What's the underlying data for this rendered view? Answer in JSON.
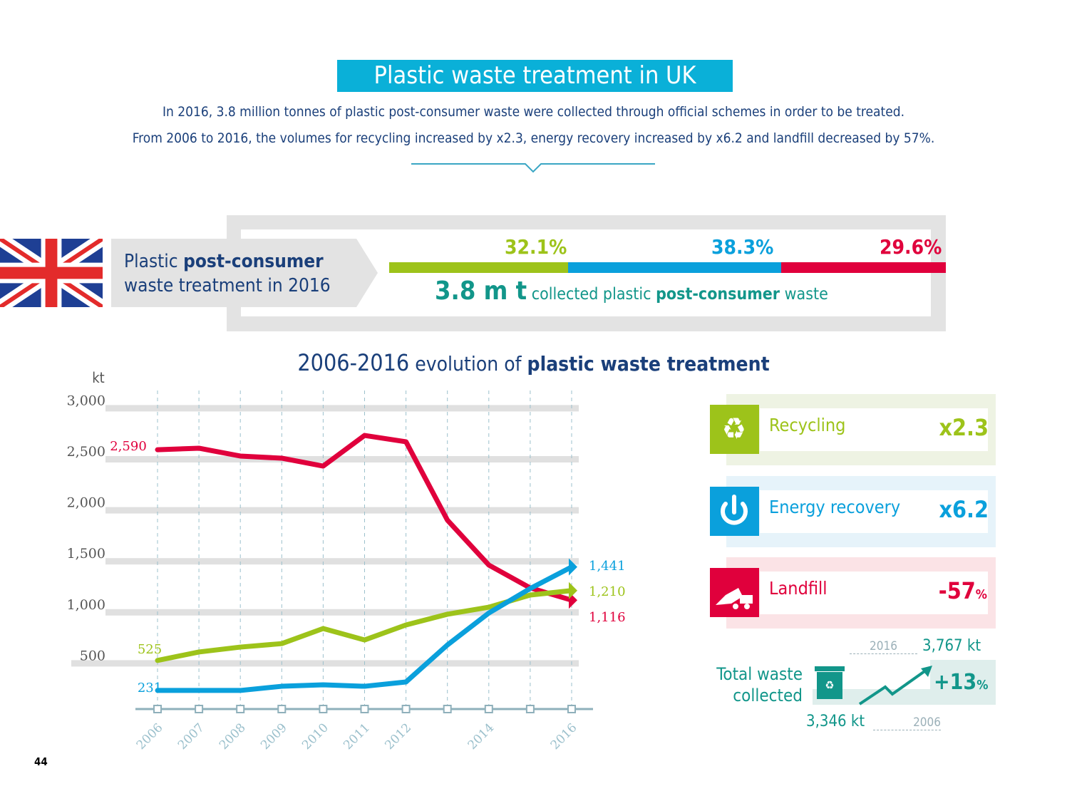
{
  "header": {
    "title": "Plastic waste treatment in UK",
    "line1": "In 2016, 3.8 million tonnes of plastic post-consumer waste were collected through official schemes in order to be treated.",
    "line2": "From 2006 to 2016, the volumes for recycling increased by x2.3, energy recovery increased by x6.2 and landfill decreased by 57%."
  },
  "summary": {
    "label_pre": "Plastic ",
    "label_bold": "post-consumer",
    "label_line2": "waste treatment in 2016",
    "shares": [
      {
        "label": "32.1%",
        "value": 32.1,
        "color": "#9dc31a"
      },
      {
        "label": "38.3%",
        "value": 38.3,
        "color": "#0aa0dc"
      },
      {
        "label": "29.6%",
        "value": 29.6,
        "color": "#e0003c"
      }
    ],
    "total_big": "3.8 m t",
    "total_mid": " collected plastic ",
    "total_bold": "post-consumer",
    "total_end": " waste"
  },
  "chart_title": {
    "years": "2006-2016",
    "mid": " evolution of ",
    "bold": "plastic waste treatment"
  },
  "chart_data": {
    "type": "line",
    "ylabel": "kt",
    "ylim": [
      0,
      3000
    ],
    "yticks": [
      "500",
      "1,000",
      "1,500",
      "2,000",
      "2,500",
      "3,000"
    ],
    "ytick_values": [
      500,
      1000,
      1500,
      2000,
      2500,
      3000
    ],
    "x": [
      2006,
      2007,
      2008,
      2009,
      2010,
      2011,
      2012,
      2013,
      2014,
      2015,
      2016
    ],
    "xtick_labels": [
      "2006",
      "2007",
      "2008",
      "2009",
      "2010",
      "2011",
      "2012",
      "",
      "2014",
      "",
      "2016"
    ],
    "grid": true,
    "series": [
      {
        "key": "landfill",
        "color": "#e0003c",
        "values": [
          2590,
          2605,
          2528,
          2507,
          2430,
          2730,
          2668,
          1900,
          1460,
          1236,
          1116
        ],
        "start_label": "2,590",
        "end_label": "1,116"
      },
      {
        "key": "recycling",
        "color": "#9dc31a",
        "values": [
          525,
          608,
          656,
          690,
          838,
          726,
          873,
          978,
          1047,
          1166,
          1210
        ],
        "start_label": "525",
        "end_label": "1,210"
      },
      {
        "key": "energy",
        "color": "#0aa0dc",
        "values": [
          231,
          231,
          231,
          272,
          286,
          272,
          314,
          677,
          990,
          1230,
          1441
        ],
        "start_label": "231",
        "end_label": "1,441"
      }
    ]
  },
  "cards": [
    {
      "label": "Recycling",
      "value": "x2.3",
      "icon": "recycle-icon",
      "color": "#9dc31a",
      "bg": "#eef3e3"
    },
    {
      "label": "Energy recovery",
      "value": "x6.2",
      "icon": "power-icon",
      "color": "#0aa0dc",
      "bg": "#e6f3fa"
    },
    {
      "label": "Landfill",
      "value": "-57",
      "suffix": "%",
      "icon": "dump-truck-icon",
      "color": "#e0003c",
      "bg": "#fbe3e6"
    }
  ],
  "total_collected": {
    "label1": "Total waste",
    "label2": "collected",
    "year_2016": "2016",
    "value_2016": "3,767 kt",
    "year_2006": "2006",
    "value_2006": "3,346 kt",
    "change": "+13",
    "change_suffix": "%",
    "icon": "recycling-bin-icon"
  },
  "page_number": "44"
}
